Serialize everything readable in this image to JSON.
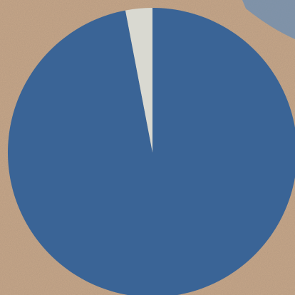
{
  "chart_data": {
    "type": "pie",
    "values": [
      97,
      3
    ],
    "colors": [
      "#3a6496",
      "#d9d9d1"
    ]
  }
}
